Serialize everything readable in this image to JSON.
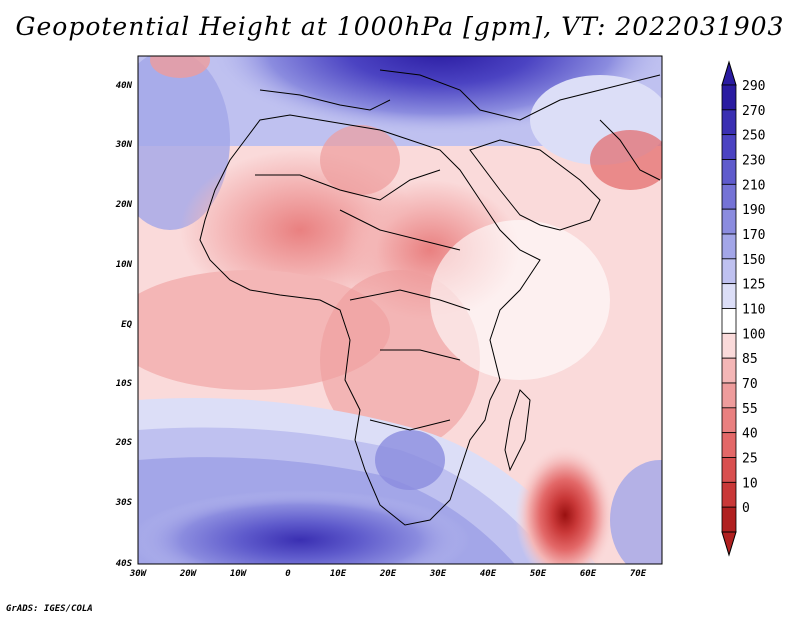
{
  "title": "Geopotential Height at 1000hPa [gpm], VT: 2022031903",
  "credit": "GrADS: IGES/COLA",
  "lat_labels": [
    "40N",
    "30N",
    "20N",
    "10N",
    "EQ",
    "10S",
    "20S",
    "30S",
    "40S"
  ],
  "lon_labels": [
    "30W",
    "20W",
    "10W",
    "0",
    "10E",
    "20E",
    "30E",
    "40E",
    "50E",
    "60E",
    "70E"
  ],
  "colorbar": {
    "levels": [
      "290",
      "270",
      "250",
      "230",
      "210",
      "190",
      "170",
      "150",
      "125",
      "110",
      "100",
      "85",
      "70",
      "55",
      "40",
      "25",
      "10",
      "0"
    ],
    "colors": [
      "#2a1ba1",
      "#3a2fb2",
      "#4b43c2",
      "#5f5bcc",
      "#7573d6",
      "#8b8cdf",
      "#a3a6e8",
      "#bfc1f0",
      "#dcdef7",
      "#ffffff",
      "#fadada",
      "#f4b6b6",
      "#ee9c9c",
      "#e98080",
      "#e36868",
      "#d95050",
      "#c93838",
      "#b02020"
    ]
  },
  "colors": {
    "land_outline": "#000000",
    "frame": "#000000"
  }
}
